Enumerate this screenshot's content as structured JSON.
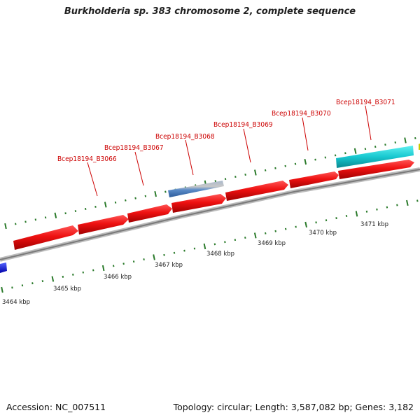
{
  "header": {
    "title": "Burkholderia sp. 383 chromosome 2, complete sequence"
  },
  "footer": {
    "accession": "Accession: NC_007511",
    "summary": "Topology: circular; Length: 3,587,082 bp; Genes: 3,182"
  },
  "map": {
    "gene_labels": [
      "Bcep18194_B3066",
      "Bcep18194_B3067",
      "Bcep18194_B3068",
      "Bcep18194_B3069",
      "Bcep18194_B3070",
      "Bcep18194_B3071"
    ],
    "kbp_labels": [
      "3464 kbp",
      "3465 kbp",
      "3466 kbp",
      "3467 kbp",
      "3468 kbp",
      "3469 kbp",
      "3470 kbp",
      "3471 kbp"
    ],
    "colors": {
      "cds": "#ee1111",
      "cds_dark": "#aa0000",
      "other_feature": "#00c8d0",
      "rna_feature": "#4a7fc0",
      "left_feature": "#1a1aee",
      "backbone": "#888888",
      "ticks": "#2a7a2a",
      "label": "#cc0000"
    }
  }
}
